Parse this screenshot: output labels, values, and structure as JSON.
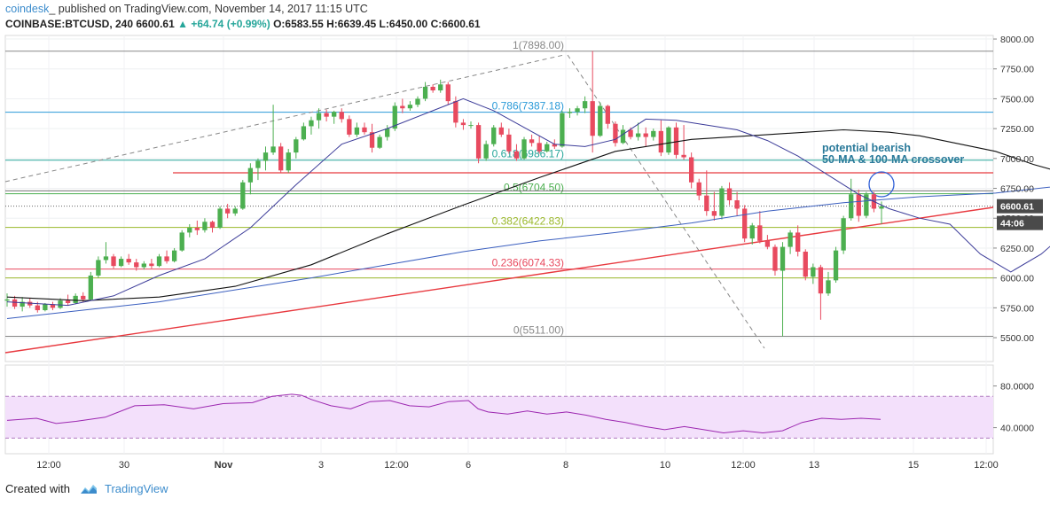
{
  "header": {
    "author": "coindesk",
    "published": "_ published on TradingView.com, November 14, 2017 11:15 UTC",
    "symbol": "COINBASE:BTCUSD, 240",
    "last": "6600.61",
    "change": "▲ +64.74 (+0.99%)",
    "ohlc_o": "O:6583.55",
    "ohlc_h": "H:6639.45",
    "ohlc_l": "L:6450.00",
    "ohlc_c": "C:6600.61"
  },
  "footer": {
    "created_with": "Created with",
    "brand": "TradingView"
  },
  "colors": {
    "up": "#4caf50",
    "down": "#e84a5f",
    "ma50": "#111111",
    "ma100": "#3b5fbf",
    "ma_short": "#3c3c99",
    "trend": "#e8393f",
    "rsi": "#9c27b0",
    "rsi_band": "#f3e0fb"
  },
  "annotation": {
    "line1": "potential bearish",
    "line2": "50-MA & 100-MA crossover"
  },
  "fib_levels": [
    {
      "label": "1(7898.00)",
      "value": 7898,
      "color": "#888888"
    },
    {
      "label": "0.786(7387.18)",
      "value": 7387.18,
      "color": "#2a9ad8"
    },
    {
      "label": "0.618(6986.17)",
      "value": 6986.17,
      "color": "#26a69a"
    },
    {
      "label": "0.5(6704.50)",
      "value": 6704.5,
      "color": "#4caf50"
    },
    {
      "label": "0.382(6422.83)",
      "value": 6422.83,
      "color": "#9ab82a"
    },
    {
      "label": "0.236(6074.33)",
      "value": 6074.33,
      "color": "#e84a5f"
    },
    {
      "label": "0(5511.00)",
      "value": 5511,
      "color": "#888888"
    }
  ],
  "price_badges": [
    {
      "label": "6600.61",
      "value": 6600.61,
      "color": "#4a4a4a"
    },
    {
      "label": "44:06",
      "value": 6460,
      "color": "#4a4a4a"
    }
  ],
  "chart_data": {
    "type": "candlestick",
    "ylim": [
      5300,
      8030
    ],
    "y_ticks": [
      "8000.00",
      "7750.00",
      "7500.00",
      "7250.00",
      "7000.00",
      "6750.00",
      "6500.00",
      "6250.00",
      "6000.00",
      "5750.00",
      "5500.00"
    ],
    "x_ticks": [
      "12:00",
      "30",
      "Nov",
      "3",
      "12:00",
      "6",
      "8",
      "10",
      "12:00",
      "13",
      "15",
      "12:00"
    ],
    "rsi_ticks": [
      "80.0000",
      "40.0000"
    ],
    "rsi_ylim": [
      15,
      100
    ],
    "candles": [
      [
        5810,
        5870,
        5760,
        5820
      ],
      [
        5820,
        5850,
        5740,
        5760
      ],
      [
        5760,
        5840,
        5720,
        5800
      ],
      [
        5800,
        5830,
        5750,
        5770
      ],
      [
        5770,
        5800,
        5710,
        5730
      ],
      [
        5730,
        5790,
        5720,
        5780
      ],
      [
        5780,
        5800,
        5730,
        5750
      ],
      [
        5750,
        5830,
        5740,
        5810
      ],
      [
        5810,
        5860,
        5770,
        5790
      ],
      [
        5790,
        5870,
        5780,
        5850
      ],
      [
        5850,
        5880,
        5800,
        5820
      ],
      [
        5820,
        6050,
        5810,
        6020
      ],
      [
        6020,
        6180,
        6000,
        6150
      ],
      [
        6150,
        6300,
        6120,
        6180
      ],
      [
        6180,
        6200,
        6080,
        6100
      ],
      [
        6100,
        6180,
        6090,
        6160
      ],
      [
        6160,
        6200,
        6110,
        6130
      ],
      [
        6130,
        6160,
        6060,
        6090
      ],
      [
        6090,
        6140,
        6070,
        6120
      ],
      [
        6120,
        6160,
        6080,
        6100
      ],
      [
        6100,
        6200,
        6090,
        6180
      ],
      [
        6180,
        6230,
        6120,
        6140
      ],
      [
        6140,
        6250,
        6130,
        6230
      ],
      [
        6230,
        6400,
        6220,
        6380
      ],
      [
        6380,
        6450,
        6340,
        6420
      ],
      [
        6420,
        6480,
        6360,
        6400
      ],
      [
        6400,
        6500,
        6380,
        6470
      ],
      [
        6470,
        6480,
        6380,
        6420
      ],
      [
        6420,
        6600,
        6410,
        6580
      ],
      [
        6580,
        6620,
        6500,
        6540
      ],
      [
        6540,
        6600,
        6520,
        6580
      ],
      [
        6580,
        6820,
        6570,
        6800
      ],
      [
        6800,
        6960,
        6700,
        6920
      ],
      [
        6920,
        7000,
        6820,
        6980
      ],
      [
        6980,
        7100,
        6900,
        7050
      ],
      [
        7050,
        7450,
        7030,
        7100
      ],
      [
        7100,
        7130,
        6880,
        6900
      ],
      [
        6900,
        7080,
        6880,
        7050
      ],
      [
        7050,
        7180,
        7000,
        7160
      ],
      [
        7160,
        7300,
        7150,
        7270
      ],
      [
        7270,
        7350,
        7200,
        7320
      ],
      [
        7320,
        7420,
        7250,
        7380
      ],
      [
        7380,
        7410,
        7310,
        7350
      ],
      [
        7350,
        7400,
        7290,
        7390
      ],
      [
        7390,
        7420,
        7300,
        7330
      ],
      [
        7330,
        7360,
        7180,
        7200
      ],
      [
        7200,
        7300,
        7180,
        7260
      ],
      [
        7260,
        7300,
        7200,
        7220
      ],
      [
        7220,
        7290,
        7050,
        7090
      ],
      [
        7090,
        7200,
        7080,
        7180
      ],
      [
        7180,
        7280,
        7150,
        7250
      ],
      [
        7250,
        7470,
        7230,
        7440
      ],
      [
        7440,
        7500,
        7380,
        7420
      ],
      [
        7420,
        7480,
        7400,
        7450
      ],
      [
        7450,
        7520,
        7430,
        7500
      ],
      [
        7500,
        7640,
        7480,
        7600
      ],
      [
        7600,
        7620,
        7550,
        7570
      ],
      [
        7570,
        7660,
        7550,
        7620
      ],
      [
        7620,
        7640,
        7450,
        7480
      ],
      [
        7480,
        7520,
        7260,
        7300
      ],
      [
        7300,
        7330,
        7240,
        7280
      ],
      [
        7280,
        7310,
        7250,
        7280
      ],
      [
        7280,
        7300,
        6960,
        7000
      ],
      [
        7000,
        7150,
        6980,
        7120
      ],
      [
        7120,
        7280,
        7100,
        7260
      ],
      [
        7260,
        7300,
        7180,
        7200
      ],
      [
        7200,
        7250,
        7040,
        7060
      ],
      [
        7060,
        7120,
        6980,
        7000
      ],
      [
        7000,
        7180,
        6990,
        7160
      ],
      [
        7160,
        7200,
        7100,
        7130
      ],
      [
        7130,
        7190,
        7040,
        7060
      ],
      [
        7060,
        7140,
        7050,
        7120
      ],
      [
        7120,
        7160,
        7080,
        7100
      ],
      [
        7100,
        7400,
        7090,
        7380
      ],
      [
        7380,
        7420,
        7340,
        7390
      ],
      [
        7390,
        7440,
        7360,
        7420
      ],
      [
        7420,
        7520,
        7380,
        7480
      ],
      [
        7480,
        7900,
        7050,
        7190
      ],
      [
        7190,
        7470,
        7180,
        7440
      ],
      [
        7440,
        7450,
        7250,
        7290
      ],
      [
        7290,
        7310,
        7100,
        7130
      ],
      [
        7130,
        7280,
        7120,
        7240
      ],
      [
        7240,
        7260,
        7160,
        7180
      ],
      [
        7180,
        7300,
        7150,
        7210
      ],
      [
        7210,
        7260,
        7100,
        7180
      ],
      [
        7180,
        7250,
        7150,
        7230
      ],
      [
        7230,
        7320,
        7020,
        7050
      ],
      [
        7050,
        7270,
        7030,
        7260
      ],
      [
        7260,
        7300,
        7000,
        7030
      ],
      [
        7030,
        7280,
        6990,
        7010
      ],
      [
        7010,
        7050,
        6750,
        6800
      ],
      [
        6800,
        6830,
        6650,
        6690
      ],
      [
        6690,
        6900,
        6520,
        6560
      ],
      [
        6560,
        6720,
        6480,
        6520
      ],
      [
        6520,
        6770,
        6490,
        6750
      ],
      [
        6750,
        6800,
        6610,
        6650
      ],
      [
        6650,
        6720,
        6520,
        6580
      ],
      [
        6580,
        6610,
        6300,
        6330
      ],
      [
        6330,
        6460,
        6280,
        6440
      ],
      [
        6440,
        6560,
        6290,
        6310
      ],
      [
        6310,
        6360,
        6240,
        6260
      ],
      [
        6260,
        6280,
        6020,
        6060
      ],
      [
        6060,
        6300,
        5510,
        6260
      ],
      [
        6260,
        6400,
        6200,
        6380
      ],
      [
        6380,
        6440,
        6180,
        6220
      ],
      [
        6220,
        6240,
        5980,
        6010
      ],
      [
        6010,
        6120,
        5950,
        6090
      ],
      [
        6090,
        6110,
        5650,
        5870
      ],
      [
        5870,
        6050,
        5850,
        5980
      ],
      [
        5980,
        6260,
        5960,
        6230
      ],
      [
        6230,
        6520,
        6200,
        6500
      ],
      [
        6500,
        6830,
        6480,
        6700
      ],
      [
        6700,
        6740,
        6470,
        6520
      ],
      [
        6520,
        6720,
        6500,
        6700
      ],
      [
        6700,
        6720,
        6550,
        6580
      ],
      [
        6580,
        6640,
        6450,
        6600
      ]
    ],
    "ma50": [
      [
        0,
        5840
      ],
      [
        10,
        5810
      ],
      [
        20,
        5840
      ],
      [
        30,
        5930
      ],
      [
        40,
        6110
      ],
      [
        50,
        6370
      ],
      [
        60,
        6610
      ],
      [
        70,
        6840
      ],
      [
        80,
        7060
      ],
      [
        90,
        7160
      ],
      [
        100,
        7200
      ],
      [
        110,
        7240
      ],
      [
        116,
        7220
      ],
      [
        120,
        7190
      ],
      [
        130,
        7060
      ],
      [
        135,
        6950
      ],
      [
        140,
        6860
      ]
    ],
    "ma100": [
      [
        0,
        5660
      ],
      [
        10,
        5730
      ],
      [
        20,
        5800
      ],
      [
        30,
        5900
      ],
      [
        40,
        6000
      ],
      [
        50,
        6110
      ],
      [
        60,
        6220
      ],
      [
        70,
        6310
      ],
      [
        80,
        6380
      ],
      [
        90,
        6460
      ],
      [
        100,
        6560
      ],
      [
        110,
        6630
      ],
      [
        120,
        6680
      ],
      [
        130,
        6710
      ],
      [
        140,
        6780
      ]
    ],
    "ma_short": [
      [
        0,
        5800
      ],
      [
        8,
        5770
      ],
      [
        14,
        5850
      ],
      [
        20,
        6020
      ],
      [
        26,
        6160
      ],
      [
        32,
        6420
      ],
      [
        38,
        6780
      ],
      [
        44,
        7120
      ],
      [
        50,
        7250
      ],
      [
        56,
        7400
      ],
      [
        60,
        7500
      ],
      [
        64,
        7400
      ],
      [
        68,
        7260
      ],
      [
        72,
        7120
      ],
      [
        76,
        7100
      ],
      [
        80,
        7160
      ],
      [
        84,
        7330
      ],
      [
        88,
        7320
      ],
      [
        92,
        7280
      ],
      [
        96,
        7240
      ],
      [
        100,
        7150
      ],
      [
        104,
        7020
      ],
      [
        108,
        6860
      ],
      [
        112,
        6700
      ],
      [
        116,
        6580
      ],
      [
        120,
        6500
      ],
      [
        124,
        6450
      ],
      [
        128,
        6200
      ],
      [
        132,
        6050
      ],
      [
        136,
        6200
      ],
      [
        140,
        6420
      ]
    ],
    "rsi": [
      [
        0,
        47
      ],
      [
        6,
        49
      ],
      [
        10,
        44
      ],
      [
        14,
        46
      ],
      [
        20,
        50
      ],
      [
        26,
        61
      ],
      [
        32,
        62
      ],
      [
        38,
        58
      ],
      [
        44,
        63
      ],
      [
        50,
        64
      ],
      [
        54,
        70
      ],
      [
        58,
        72
      ],
      [
        60,
        71
      ],
      [
        62,
        67
      ],
      [
        66,
        61
      ],
      [
        70,
        58
      ],
      [
        74,
        65
      ],
      [
        78,
        66
      ],
      [
        82,
        61
      ],
      [
        86,
        60
      ],
      [
        90,
        65
      ],
      [
        94,
        66
      ],
      [
        96,
        58
      ],
      [
        98,
        55
      ],
      [
        102,
        53
      ],
      [
        106,
        56
      ],
      [
        110,
        53
      ],
      [
        114,
        55
      ],
      [
        118,
        52
      ],
      [
        122,
        48
      ],
      [
        126,
        45
      ],
      [
        130,
        41
      ],
      [
        134,
        38
      ],
      [
        138,
        41
      ],
      [
        142,
        38
      ],
      [
        146,
        35
      ],
      [
        150,
        37
      ],
      [
        154,
        35
      ],
      [
        158,
        37
      ],
      [
        162,
        45
      ],
      [
        166,
        49
      ],
      [
        170,
        48
      ],
      [
        174,
        49
      ],
      [
        178,
        48
      ]
    ]
  }
}
